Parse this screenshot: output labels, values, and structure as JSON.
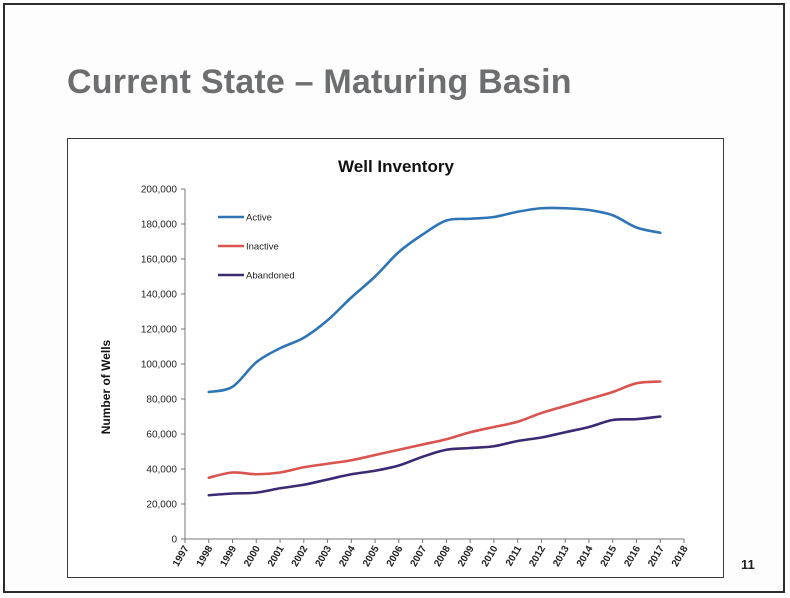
{
  "slide": {
    "title": "Current State – Maturing Basin",
    "page_number": "11"
  },
  "chart_data": {
    "type": "line",
    "title": "Well Inventory",
    "xlabel": "",
    "ylabel": "Number of Wells",
    "x_ticks": [
      "1997",
      "1998",
      "1999",
      "2000",
      "2001",
      "2002",
      "2003",
      "2004",
      "2005",
      "2006",
      "2007",
      "2008",
      "2009",
      "2010",
      "2011",
      "2012",
      "2013",
      "2014",
      "2015",
      "2016",
      "2017",
      "2018"
    ],
    "y_ticks": [
      "0",
      "20,000",
      "40,000",
      "60,000",
      "80,000",
      "100,000",
      "120,000",
      "140,000",
      "160,000",
      "180,000",
      "200,000"
    ],
    "xlim": [
      1997,
      2018
    ],
    "ylim": [
      0,
      200000
    ],
    "grid": false,
    "legend_position": "top-left",
    "x": [
      1998,
      1999,
      2000,
      2001,
      2002,
      2003,
      2004,
      2005,
      2006,
      2007,
      2008,
      2009,
      2010,
      2011,
      2012,
      2013,
      2014,
      2015,
      2016,
      2017
    ],
    "series": [
      {
        "name": "Active",
        "color": "#2e75b6",
        "values": [
          84000,
          87000,
          101000,
          109000,
          115000,
          125000,
          138000,
          150000,
          164000,
          174000,
          182000,
          183000,
          184000,
          187000,
          189000,
          189000,
          188000,
          185000,
          178000,
          175000
        ]
      },
      {
        "name": "Inactive",
        "color": "#d9534f",
        "values": [
          35000,
          38000,
          37000,
          38000,
          41000,
          43000,
          45000,
          48000,
          51000,
          54000,
          57000,
          61000,
          64000,
          67000,
          72000,
          76000,
          80000,
          84000,
          89000,
          90000
        ]
      },
      {
        "name": "Abandoned",
        "color": "#3b2a73",
        "values": [
          25000,
          26000,
          26500,
          29000,
          31000,
          34000,
          37000,
          39000,
          42000,
          47000,
          51000,
          52000,
          53000,
          56000,
          58000,
          61000,
          64000,
          68000,
          68500,
          70000
        ]
      }
    ]
  }
}
